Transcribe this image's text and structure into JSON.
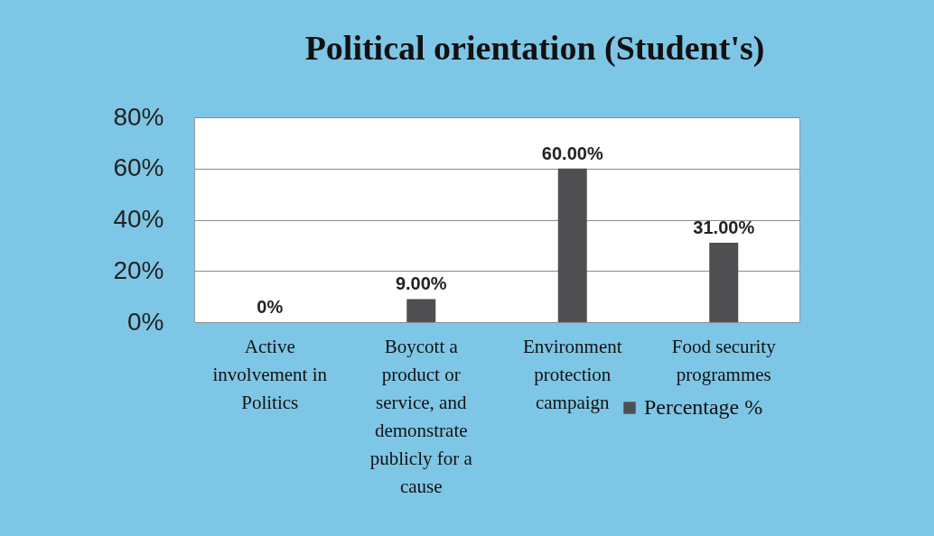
{
  "chart_data": {
    "type": "bar",
    "title": "Political orientation (Student's)",
    "categories": [
      "Active involvement in Politics",
      "Boycott a product or service, and demonstrate publicly for a cause",
      "Environment protection campaign",
      "Food security programmes"
    ],
    "series": [
      {
        "name": "Percentage %",
        "color": "#4f4f52",
        "values": [
          0,
          9,
          60,
          31
        ],
        "value_labels": [
          "0%",
          "9.00%",
          "60.00%",
          "31.00%"
        ]
      }
    ],
    "ylim": [
      0,
      80
    ],
    "yticks": [
      {
        "value": 0,
        "label": "0%"
      },
      {
        "value": 20,
        "label": "20%"
      },
      {
        "value": 40,
        "label": "40%"
      },
      {
        "value": 60,
        "label": "60%"
      },
      {
        "value": 80,
        "label": "80%"
      }
    ],
    "grid": "y",
    "legend": "bottom right"
  }
}
